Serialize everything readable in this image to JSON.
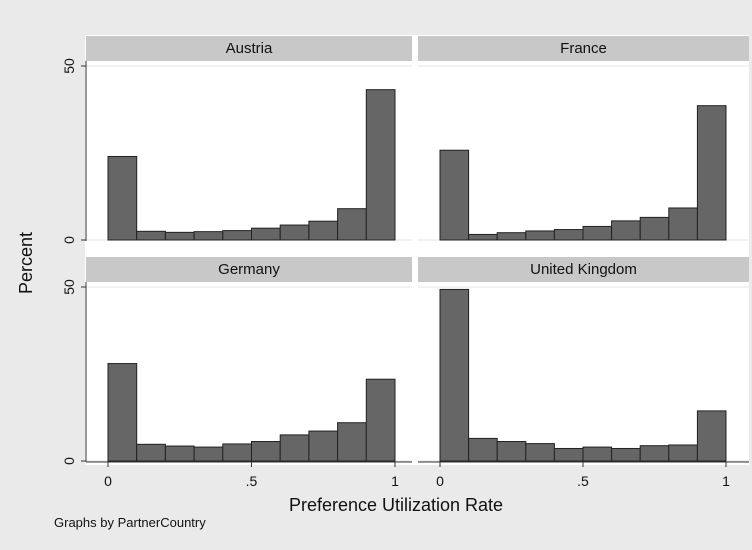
{
  "chart_data": {
    "type": "bar",
    "ylabel": "Percent",
    "xlabel": "Preference Utilization Rate",
    "xticks": [
      {
        "value": 0,
        "label": "0"
      },
      {
        "value": 0.5,
        "label": ".5"
      },
      {
        "value": 1,
        "label": "1"
      }
    ],
    "yticks": [
      {
        "value": 0,
        "label": "0"
      },
      {
        "value": 50,
        "label": "50"
      }
    ],
    "xlim": [
      0,
      1
    ],
    "ylim": [
      0,
      50
    ],
    "bin_edges": [
      0,
      0.1,
      0.2,
      0.3,
      0.4,
      0.5,
      0.6,
      0.7,
      0.8,
      0.9,
      1.0
    ],
    "bar_color": "#666666",
    "panels": [
      {
        "title": "Austria",
        "values": [
          24,
          2.5,
          2.2,
          2.4,
          2.7,
          3.4,
          4.3,
          5.4,
          9.0,
          43.2
        ]
      },
      {
        "title": "France",
        "values": [
          25.8,
          1.6,
          2.1,
          2.6,
          3.0,
          3.9,
          5.5,
          6.5,
          9.2,
          38.6
        ]
      },
      {
        "title": "Germany",
        "values": [
          28.0,
          4.8,
          4.3,
          4.0,
          4.9,
          5.6,
          7.5,
          8.6,
          11.0,
          23.5
        ]
      },
      {
        "title": "United Kingdom",
        "values": [
          49.3,
          6.5,
          5.6,
          5.0,
          3.6,
          4.0,
          3.6,
          4.4,
          4.6,
          14.4
        ]
      }
    ],
    "note": "Graphs by PartnerCountry"
  }
}
